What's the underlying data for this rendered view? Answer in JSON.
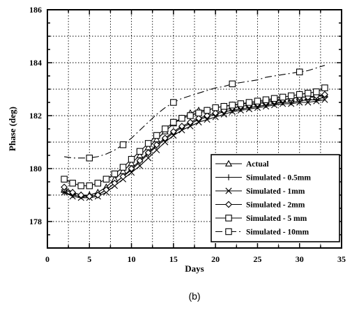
{
  "chart_data": {
    "type": "line",
    "xlabel": "Days",
    "ylabel": "Phase (deg)",
    "caption": "(b)",
    "xlim": [
      0,
      35
    ],
    "ylim": [
      177,
      186
    ],
    "xticks": [
      0,
      5,
      10,
      15,
      20,
      25,
      30,
      35
    ],
    "yticks": [
      178,
      180,
      182,
      184,
      186
    ],
    "grid": true,
    "legend_position": "bottom-right",
    "series": [
      {
        "name": "Actual",
        "marker": "triangle",
        "dash": "solid",
        "x": [
          2,
          3,
          4,
          5,
          6,
          7,
          8,
          9,
          10,
          11,
          12,
          13,
          14,
          15,
          16,
          17,
          18,
          19,
          20,
          21,
          22,
          23,
          24,
          25,
          26,
          27,
          28,
          29,
          30,
          31,
          32,
          33
        ],
        "y": [
          179.2,
          179.1,
          179.0,
          179.0,
          179.1,
          179.3,
          179.6,
          179.9,
          180.2,
          180.5,
          180.8,
          181.1,
          181.4,
          181.7,
          181.9,
          182.1,
          182.2,
          182.2,
          182.3,
          182.35,
          182.4,
          182.45,
          182.45,
          182.5,
          182.55,
          182.6,
          182.6,
          182.65,
          182.7,
          182.7,
          182.7,
          182.8
        ]
      },
      {
        "name": "Simulated - 0.5mm",
        "marker": "plus",
        "dash": "solid",
        "x": [
          2,
          3,
          4,
          5,
          6,
          7,
          8,
          9,
          10,
          11,
          12,
          13,
          14,
          15,
          16,
          17,
          18,
          19,
          20,
          21,
          22,
          23,
          24,
          25,
          26,
          27,
          28,
          29,
          30,
          31,
          32,
          33
        ],
        "y": [
          179.1,
          179.0,
          178.95,
          178.95,
          179.0,
          179.2,
          179.45,
          179.7,
          179.95,
          180.25,
          180.55,
          180.85,
          181.1,
          181.35,
          181.55,
          181.7,
          181.85,
          181.95,
          182.05,
          182.15,
          182.2,
          182.25,
          182.3,
          182.35,
          182.4,
          182.45,
          182.5,
          182.5,
          182.55,
          182.6,
          182.6,
          182.7
        ]
      },
      {
        "name": "Simulated - 1mm",
        "marker": "x",
        "dash": "solid",
        "x": [
          2,
          3,
          4,
          5,
          6,
          7,
          8,
          9,
          10,
          11,
          12,
          13,
          14,
          15,
          16,
          17,
          18,
          19,
          20,
          21,
          22,
          23,
          24,
          25,
          26,
          27,
          28,
          29,
          30,
          31,
          32,
          33
        ],
        "y": [
          179.1,
          178.95,
          178.9,
          178.9,
          178.95,
          179.1,
          179.35,
          179.6,
          179.85,
          180.1,
          180.4,
          180.7,
          181.0,
          181.25,
          181.45,
          181.6,
          181.75,
          181.85,
          181.95,
          182.05,
          182.15,
          182.2,
          182.25,
          182.3,
          182.35,
          182.4,
          182.45,
          182.45,
          182.5,
          182.5,
          182.55,
          182.6
        ]
      },
      {
        "name": "Simulated - 2mm",
        "marker": "diamond",
        "dash": "solid",
        "x": [
          2,
          3,
          4,
          5,
          6,
          7,
          8,
          9,
          10,
          11,
          12,
          13,
          14,
          15,
          16,
          17,
          18,
          19,
          20,
          21,
          22,
          23,
          24,
          25,
          26,
          27,
          28,
          29,
          30,
          31,
          32,
          33
        ],
        "y": [
          179.3,
          179.1,
          179.0,
          178.95,
          179.0,
          179.2,
          179.45,
          179.7,
          180.0,
          180.3,
          180.6,
          180.9,
          181.15,
          181.4,
          181.6,
          181.75,
          181.9,
          182.0,
          182.1,
          182.2,
          182.3,
          182.35,
          182.4,
          182.45,
          182.5,
          182.55,
          182.6,
          182.65,
          182.7,
          182.7,
          182.75,
          182.8
        ]
      },
      {
        "name": "Simulated - 5 mm",
        "marker": "square",
        "dash": "solid",
        "x": [
          2,
          3,
          4,
          5,
          6,
          7,
          8,
          9,
          10,
          11,
          12,
          13,
          14,
          15,
          16,
          17,
          18,
          19,
          20,
          21,
          22,
          23,
          24,
          25,
          26,
          27,
          28,
          29,
          30,
          31,
          32,
          33
        ],
        "y": [
          179.6,
          179.45,
          179.35,
          179.35,
          179.45,
          179.6,
          179.8,
          180.05,
          180.35,
          180.65,
          180.95,
          181.25,
          181.5,
          181.75,
          181.9,
          182.0,
          182.1,
          182.2,
          182.3,
          182.35,
          182.4,
          182.45,
          182.5,
          182.55,
          182.6,
          182.65,
          182.7,
          182.75,
          182.8,
          182.85,
          182.9,
          183.05
        ]
      },
      {
        "name": "Simulated - 10mm",
        "marker": "square",
        "dash": "dashdot",
        "x": [
          2,
          3,
          4,
          5,
          6,
          7,
          8,
          9,
          10,
          11,
          12,
          13,
          14,
          15,
          16,
          17,
          18,
          19,
          20,
          21,
          22,
          23,
          24,
          25,
          26,
          27,
          28,
          29,
          30,
          31,
          32,
          33
        ],
        "y": [
          180.45,
          180.4,
          180.4,
          180.4,
          180.45,
          180.55,
          180.7,
          180.9,
          181.15,
          181.45,
          181.75,
          182.05,
          182.3,
          182.5,
          182.65,
          182.75,
          182.85,
          182.95,
          183.05,
          183.1,
          183.2,
          183.25,
          183.3,
          183.35,
          183.45,
          183.5,
          183.55,
          183.6,
          183.65,
          183.7,
          183.8,
          183.9
        ]
      }
    ]
  }
}
